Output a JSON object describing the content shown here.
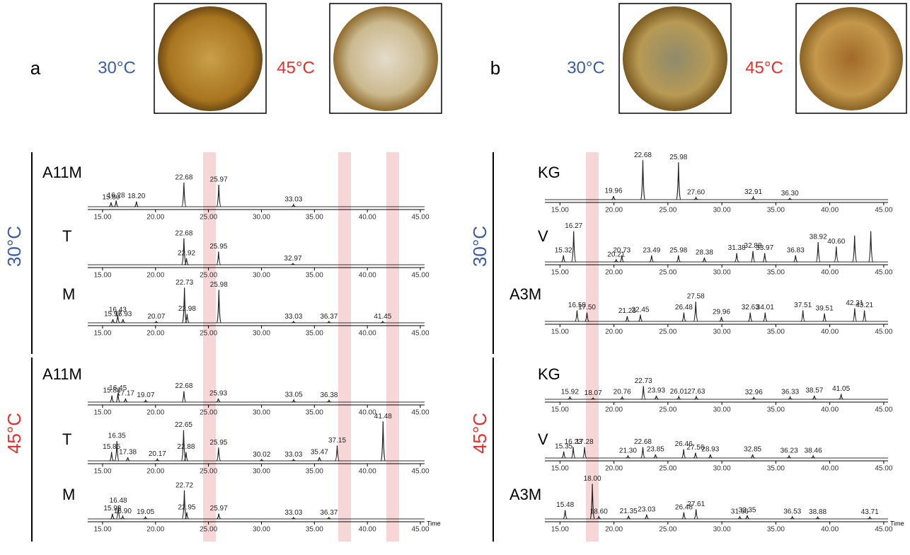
{
  "panels": [
    {
      "label": "a"
    },
    {
      "label": "b"
    }
  ],
  "groups": [
    {
      "label": "30°C",
      "color": "#3b5ca6"
    },
    {
      "label": "45°C",
      "color": "#e5302d"
    }
  ],
  "axis": {
    "xlim": [
      13.6,
      45.4
    ],
    "xticks": [
      {
        "value": 15,
        "label": "15.00"
      },
      {
        "value": 20,
        "label": "20.00"
      },
      {
        "value": 25,
        "label": "25.00"
      },
      {
        "value": 30,
        "label": "30.00"
      },
      {
        "value": 35,
        "label": "35.00"
      },
      {
        "value": 40,
        "label": "40.00"
      },
      {
        "value": 45,
        "label": "45.00"
      }
    ]
  },
  "chart_data": [
    {
      "type": "chromatogram",
      "name": "A11M",
      "ylim": [
        0,
        100
      ],
      "x": [
        15.8,
        16.28,
        18.2,
        22.68,
        25.97,
        33.03
      ],
      "peak_labels": [
        "15.80",
        "16.28",
        "18.20",
        "22.68",
        "25.97",
        "33.03"
      ],
      "values": [
        10,
        14,
        12,
        55,
        50,
        5
      ]
    },
    {
      "type": "chromatogram",
      "name": "T",
      "ylim": [
        0,
        100
      ],
      "x": [
        22.68,
        22.92,
        25.95,
        32.97
      ],
      "peak_labels": [
        "22.68",
        "22.92",
        "25.95",
        "32.97"
      ],
      "values": [
        60,
        15,
        30,
        3
      ]
    },
    {
      "type": "chromatogram",
      "name": "M",
      "ylim": [
        0,
        100
      ],
      "x": [
        15.97,
        16.43,
        16.93,
        20.07,
        22.73,
        22.98,
        25.98,
        33.03,
        36.37,
        41.45
      ],
      "peak_labels": [
        "15.97",
        "16.43",
        "16.93",
        "20.07",
        "22.73",
        "22.98",
        "25.98",
        "33.03",
        "36.37",
        "41.45"
      ],
      "values": [
        8,
        18,
        8,
        3,
        80,
        20,
        75,
        3,
        3,
        3
      ]
    },
    {
      "type": "chromatogram",
      "name": "A11M",
      "ylim": [
        0,
        100
      ],
      "x": [
        15.88,
        16.45,
        17.17,
        19.07,
        22.68,
        25.93,
        33.05,
        36.38
      ],
      "peak_labels": [
        "15.88",
        "16.45",
        "17.17",
        "19.07",
        "22.68",
        "25.93",
        "33.05",
        "36.38"
      ],
      "values": [
        15,
        20,
        8,
        4,
        25,
        8,
        5,
        4
      ]
    },
    {
      "type": "chromatogram",
      "name": "T",
      "ylim": [
        0,
        100
      ],
      "x": [
        15.85,
        16.35,
        17.38,
        20.17,
        22.65,
        22.88,
        25.95,
        30.02,
        33.03,
        35.47,
        37.15,
        41.48
      ],
      "peak_labels": [
        "15.85",
        "16.35",
        "17.38",
        "20.17",
        "22.65",
        "22.88",
        "25.95",
        "30.02",
        "33.03",
        "35.47",
        "37.15",
        "41.48"
      ],
      "values": [
        20,
        45,
        8,
        4,
        70,
        20,
        30,
        3,
        3,
        8,
        35,
        90
      ]
    },
    {
      "type": "chromatogram",
      "name": "M",
      "ylim": [
        0,
        100
      ],
      "x_label": "Time",
      "x": [
        15.93,
        16.48,
        16.9,
        19.05,
        22.72,
        22.95,
        25.97,
        33.03,
        36.37
      ],
      "peak_labels": [
        "15.93",
        "16.48",
        "16.90",
        "19.05",
        "22.72",
        "22.95",
        "25.97",
        "33.03",
        "36.37"
      ],
      "values": [
        12,
        30,
        6,
        4,
        65,
        15,
        12,
        3,
        3
      ]
    },
    {
      "type": "chromatogram",
      "name": "KG",
      "ylim": [
        0,
        100
      ],
      "x": [
        19.96,
        22.68,
        25.98,
        27.6,
        32.91,
        36.3
      ],
      "peak_labels": [
        "19.96",
        "22.68",
        "25.98",
        "27.60",
        "32.91",
        "36.30"
      ],
      "values": [
        8,
        90,
        85,
        5,
        6,
        3
      ]
    },
    {
      "type": "chromatogram",
      "name": "V",
      "ylim": [
        0,
        100
      ],
      "x": [
        15.32,
        16.27,
        20.21,
        20.73,
        23.49,
        25.98,
        28.38,
        31.38,
        32.88,
        33.97,
        36.83,
        38.92,
        40.6,
        42.3,
        43.8
      ],
      "peak_labels": [
        "15.32",
        "16.27",
        "20.21",
        "20.73",
        "23.49",
        "25.98",
        "28.38",
        "31.38",
        "32.88",
        "33.97",
        "36.83",
        "38.92",
        "40.60",
        null,
        null
      ],
      "values": [
        15,
        70,
        5,
        15,
        15,
        15,
        10,
        20,
        25,
        20,
        15,
        45,
        35,
        60,
        70
      ]
    },
    {
      "type": "chromatogram",
      "name": "A3M",
      "ylim": [
        0,
        100
      ],
      "x": [
        16.58,
        17.5,
        21.23,
        22.45,
        26.48,
        27.58,
        29.96,
        32.63,
        34.01,
        37.51,
        39.51,
        42.31,
        43.21
      ],
      "peak_labels": [
        "16.58",
        "17.50",
        "21.23",
        "22.45",
        "26.48",
        "27.58",
        "29.96",
        "32.63",
        "34.01",
        "37.51",
        "39.51",
        "42.31",
        "43.21"
      ],
      "values": [
        25,
        20,
        12,
        15,
        20,
        45,
        10,
        20,
        20,
        25,
        18,
        30,
        25
      ]
    },
    {
      "type": "chromatogram",
      "name": "KG",
      "ylim": [
        0,
        100
      ],
      "x": [
        15.92,
        18.07,
        20.76,
        22.73,
        23.93,
        26.01,
        27.63,
        32.96,
        36.33,
        38.57,
        41.05
      ],
      "peak_labels": [
        "15.92",
        "18.07",
        "20.76",
        "22.73",
        "23.93",
        "26.01",
        "27.63",
        "32.96",
        "36.33",
        "38.57",
        "41.05"
      ],
      "values": [
        5,
        3,
        5,
        30,
        8,
        6,
        6,
        4,
        5,
        8,
        12
      ]
    },
    {
      "type": "chromatogram",
      "name": "V",
      "ylim": [
        0,
        100
      ],
      "x": [
        15.35,
        16.23,
        17.28,
        21.3,
        22.68,
        23.85,
        26.46,
        27.56,
        28.93,
        32.85,
        36.23,
        38.46
      ],
      "peak_labels": [
        "15.35",
        "16.23",
        "17.28",
        "21.30",
        "22.68",
        "23.85",
        "26.46",
        "27.56",
        "28.93",
        "32.85",
        "36.23",
        "38.46"
      ],
      "values": [
        15,
        25,
        25,
        5,
        25,
        8,
        20,
        12,
        8,
        8,
        5,
        5
      ]
    },
    {
      "type": "chromatogram",
      "name": "A3M",
      "ylim": [
        0,
        100
      ],
      "x_label": "Time",
      "x": [
        15.48,
        18.0,
        18.6,
        21.35,
        23.03,
        26.48,
        27.61,
        31.66,
        32.35,
        36.53,
        38.88,
        43.71
      ],
      "peak_labels": [
        "15.48",
        "18.00",
        "18.60",
        "21.35",
        "23.03",
        "26.48",
        "27.61",
        "31.66",
        "32.35",
        "36.53",
        "38.88",
        "43.71"
      ],
      "values": [
        20,
        80,
        5,
        6,
        10,
        15,
        22,
        5,
        8,
        5,
        4,
        4
      ]
    }
  ]
}
